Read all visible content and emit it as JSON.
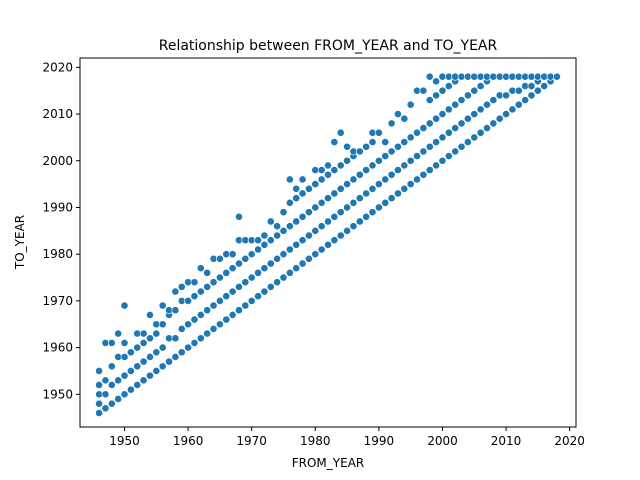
{
  "chart_data": {
    "type": "scatter",
    "title": "Relationship between FROM_YEAR and TO_YEAR",
    "xlabel": "FROM_YEAR",
    "ylabel": "TO_YEAR",
    "xlim": [
      1943,
      2021
    ],
    "ylim": [
      1943,
      2022
    ],
    "xticks": [
      1950,
      1960,
      1970,
      1980,
      1990,
      2000,
      2010,
      2020
    ],
    "yticks": [
      1950,
      1960,
      1970,
      1980,
      1990,
      2000,
      2010,
      2020
    ],
    "grid": false,
    "legend": "none",
    "marker_color": "#1f77b4",
    "description_of_distribution": "Points fill the region between TO_YEAR = FROM_YEAR and roughly TO_YEAR = FROM_YEAR + 20, capped at 2018",
    "series": [
      {
        "points": [
          [
            1946,
            1946
          ],
          [
            1946,
            1948
          ],
          [
            1946,
            1950
          ],
          [
            1946,
            1952
          ],
          [
            1946,
            1955
          ],
          [
            1947,
            1947
          ],
          [
            1947,
            1950
          ],
          [
            1947,
            1953
          ],
          [
            1947,
            1961
          ],
          [
            1948,
            1948
          ],
          [
            1948,
            1952
          ],
          [
            1948,
            1956
          ],
          [
            1948,
            1961
          ],
          [
            1949,
            1949
          ],
          [
            1949,
            1953
          ],
          [
            1949,
            1958
          ],
          [
            1949,
            1963
          ],
          [
            1950,
            1950
          ],
          [
            1950,
            1954
          ],
          [
            1950,
            1958
          ],
          [
            1950,
            1961
          ],
          [
            1950,
            1969
          ],
          [
            1951,
            1951
          ],
          [
            1951,
            1955
          ],
          [
            1951,
            1959
          ],
          [
            1952,
            1952
          ],
          [
            1952,
            1956
          ],
          [
            1952,
            1960
          ],
          [
            1952,
            1963
          ],
          [
            1953,
            1953
          ],
          [
            1953,
            1957
          ],
          [
            1953,
            1961
          ],
          [
            1953,
            1963
          ],
          [
            1954,
            1954
          ],
          [
            1954,
            1958
          ],
          [
            1954,
            1962
          ],
          [
            1954,
            1967
          ],
          [
            1955,
            1955
          ],
          [
            1955,
            1959
          ],
          [
            1955,
            1963
          ],
          [
            1955,
            1965
          ],
          [
            1956,
            1956
          ],
          [
            1956,
            1960
          ],
          [
            1956,
            1965
          ],
          [
            1956,
            1969
          ],
          [
            1957,
            1957
          ],
          [
            1957,
            1962
          ],
          [
            1957,
            1967
          ],
          [
            1957,
            1968
          ],
          [
            1958,
            1958
          ],
          [
            1958,
            1962
          ],
          [
            1958,
            1968
          ],
          [
            1958,
            1972
          ],
          [
            1959,
            1959
          ],
          [
            1959,
            1964
          ],
          [
            1959,
            1970
          ],
          [
            1959,
            1973
          ],
          [
            1960,
            1960
          ],
          [
            1960,
            1965
          ],
          [
            1960,
            1970
          ],
          [
            1960,
            1974
          ],
          [
            1961,
            1961
          ],
          [
            1961,
            1966
          ],
          [
            1961,
            1971
          ],
          [
            1961,
            1974
          ],
          [
            1962,
            1962
          ],
          [
            1962,
            1967
          ],
          [
            1962,
            1972
          ],
          [
            1962,
            1977
          ],
          [
            1963,
            1963
          ],
          [
            1963,
            1968
          ],
          [
            1963,
            1973
          ],
          [
            1963,
            1976
          ],
          [
            1964,
            1964
          ],
          [
            1964,
            1969
          ],
          [
            1964,
            1974
          ],
          [
            1964,
            1979
          ],
          [
            1965,
            1965
          ],
          [
            1965,
            1970
          ],
          [
            1965,
            1975
          ],
          [
            1965,
            1979
          ],
          [
            1966,
            1966
          ],
          [
            1966,
            1971
          ],
          [
            1966,
            1976
          ],
          [
            1966,
            1980
          ],
          [
            1967,
            1967
          ],
          [
            1967,
            1972
          ],
          [
            1967,
            1977
          ],
          [
            1967,
            1980
          ],
          [
            1968,
            1968
          ],
          [
            1968,
            1973
          ],
          [
            1968,
            1978
          ],
          [
            1968,
            1983
          ],
          [
            1968,
            1988
          ],
          [
            1969,
            1969
          ],
          [
            1969,
            1974
          ],
          [
            1969,
            1979
          ],
          [
            1969,
            1983
          ],
          [
            1970,
            1970
          ],
          [
            1970,
            1975
          ],
          [
            1970,
            1980
          ],
          [
            1970,
            1983
          ],
          [
            1971,
            1971
          ],
          [
            1971,
            1976
          ],
          [
            1971,
            1981
          ],
          [
            1971,
            1983
          ],
          [
            1972,
            1972
          ],
          [
            1972,
            1977
          ],
          [
            1972,
            1982
          ],
          [
            1972,
            1984
          ],
          [
            1973,
            1973
          ],
          [
            1973,
            1978
          ],
          [
            1973,
            1983
          ],
          [
            1973,
            1987
          ],
          [
            1974,
            1974
          ],
          [
            1974,
            1979
          ],
          [
            1974,
            1984
          ],
          [
            1974,
            1986
          ],
          [
            1975,
            1975
          ],
          [
            1975,
            1980
          ],
          [
            1975,
            1985
          ],
          [
            1975,
            1989
          ],
          [
            1976,
            1976
          ],
          [
            1976,
            1981
          ],
          [
            1976,
            1986
          ],
          [
            1976,
            1991
          ],
          [
            1976,
            1996
          ],
          [
            1977,
            1977
          ],
          [
            1977,
            1982
          ],
          [
            1977,
            1987
          ],
          [
            1977,
            1992
          ],
          [
            1977,
            1994
          ],
          [
            1978,
            1978
          ],
          [
            1978,
            1983
          ],
          [
            1978,
            1988
          ],
          [
            1978,
            1993
          ],
          [
            1978,
            1996
          ],
          [
            1979,
            1979
          ],
          [
            1979,
            1984
          ],
          [
            1979,
            1989
          ],
          [
            1979,
            1994
          ],
          [
            1980,
            1980
          ],
          [
            1980,
            1985
          ],
          [
            1980,
            1990
          ],
          [
            1980,
            1995
          ],
          [
            1980,
            1998
          ],
          [
            1981,
            1981
          ],
          [
            1981,
            1986
          ],
          [
            1981,
            1991
          ],
          [
            1981,
            1996
          ],
          [
            1981,
            1998
          ],
          [
            1982,
            1982
          ],
          [
            1982,
            1987
          ],
          [
            1982,
            1992
          ],
          [
            1982,
            1997
          ],
          [
            1982,
            1999
          ],
          [
            1983,
            1983
          ],
          [
            1983,
            1988
          ],
          [
            1983,
            1993
          ],
          [
            1983,
            1998
          ],
          [
            1983,
            2004
          ],
          [
            1984,
            1984
          ],
          [
            1984,
            1989
          ],
          [
            1984,
            1994
          ],
          [
            1984,
            1999
          ],
          [
            1984,
            2006
          ],
          [
            1985,
            1985
          ],
          [
            1985,
            1990
          ],
          [
            1985,
            1995
          ],
          [
            1985,
            2000
          ],
          [
            1985,
            2003
          ],
          [
            1986,
            1986
          ],
          [
            1986,
            1991
          ],
          [
            1986,
            1996
          ],
          [
            1986,
            2001
          ],
          [
            1986,
            2002
          ],
          [
            1987,
            1987
          ],
          [
            1987,
            1992
          ],
          [
            1987,
            1997
          ],
          [
            1987,
            2002
          ],
          [
            1988,
            1988
          ],
          [
            1988,
            1993
          ],
          [
            1988,
            1998
          ],
          [
            1988,
            2003
          ],
          [
            1989,
            1989
          ],
          [
            1989,
            1994
          ],
          [
            1989,
            1999
          ],
          [
            1989,
            2004
          ],
          [
            1989,
            2006
          ],
          [
            1990,
            1990
          ],
          [
            1990,
            1995
          ],
          [
            1990,
            2000
          ],
          [
            1990,
            2006
          ],
          [
            1991,
            1991
          ],
          [
            1991,
            1996
          ],
          [
            1991,
            2001
          ],
          [
            1991,
            2004
          ],
          [
            1992,
            1992
          ],
          [
            1992,
            1997
          ],
          [
            1992,
            2002
          ],
          [
            1992,
            2008
          ],
          [
            1993,
            1993
          ],
          [
            1993,
            1998
          ],
          [
            1993,
            2003
          ],
          [
            1993,
            2010
          ],
          [
            1994,
            1994
          ],
          [
            1994,
            1999
          ],
          [
            1994,
            2004
          ],
          [
            1994,
            2009
          ],
          [
            1995,
            1995
          ],
          [
            1995,
            2000
          ],
          [
            1995,
            2005
          ],
          [
            1995,
            2012
          ],
          [
            1996,
            1996
          ],
          [
            1996,
            2001
          ],
          [
            1996,
            2006
          ],
          [
            1996,
            2015
          ],
          [
            1997,
            1997
          ],
          [
            1997,
            2002
          ],
          [
            1997,
            2007
          ],
          [
            1997,
            2015
          ],
          [
            1998,
            1998
          ],
          [
            1998,
            2003
          ],
          [
            1998,
            2008
          ],
          [
            1998,
            2013
          ],
          [
            1998,
            2018
          ],
          [
            1999,
            1999
          ],
          [
            1999,
            2004
          ],
          [
            1999,
            2009
          ],
          [
            1999,
            2014
          ],
          [
            1999,
            2017
          ],
          [
            2000,
            2000
          ],
          [
            2000,
            2005
          ],
          [
            2000,
            2010
          ],
          [
            2000,
            2015
          ],
          [
            2000,
            2018
          ],
          [
            2001,
            2001
          ],
          [
            2001,
            2006
          ],
          [
            2001,
            2011
          ],
          [
            2001,
            2016
          ],
          [
            2001,
            2018
          ],
          [
            2002,
            2002
          ],
          [
            2002,
            2007
          ],
          [
            2002,
            2012
          ],
          [
            2002,
            2017
          ],
          [
            2002,
            2018
          ],
          [
            2003,
            2003
          ],
          [
            2003,
            2008
          ],
          [
            2003,
            2013
          ],
          [
            2003,
            2018
          ],
          [
            2004,
            2004
          ],
          [
            2004,
            2009
          ],
          [
            2004,
            2014
          ],
          [
            2004,
            2018
          ],
          [
            2005,
            2005
          ],
          [
            2005,
            2010
          ],
          [
            2005,
            2015
          ],
          [
            2005,
            2018
          ],
          [
            2006,
            2006
          ],
          [
            2006,
            2011
          ],
          [
            2006,
            2016
          ],
          [
            2006,
            2018
          ],
          [
            2007,
            2007
          ],
          [
            2007,
            2012
          ],
          [
            2007,
            2017
          ],
          [
            2007,
            2018
          ],
          [
            2008,
            2008
          ],
          [
            2008,
            2013
          ],
          [
            2008,
            2018
          ],
          [
            2009,
            2009
          ],
          [
            2009,
            2014
          ],
          [
            2009,
            2018
          ],
          [
            2010,
            2010
          ],
          [
            2010,
            2014
          ],
          [
            2010,
            2018
          ],
          [
            2011,
            2011
          ],
          [
            2011,
            2015
          ],
          [
            2011,
            2018
          ],
          [
            2012,
            2012
          ],
          [
            2012,
            2015
          ],
          [
            2012,
            2018
          ],
          [
            2013,
            2013
          ],
          [
            2013,
            2016
          ],
          [
            2013,
            2018
          ],
          [
            2014,
            2014
          ],
          [
            2014,
            2016
          ],
          [
            2014,
            2018
          ],
          [
            2015,
            2015
          ],
          [
            2015,
            2017
          ],
          [
            2015,
            2018
          ],
          [
            2016,
            2016
          ],
          [
            2016,
            2018
          ],
          [
            2017,
            2017
          ],
          [
            2017,
            2018
          ],
          [
            2018,
            2018
          ]
        ]
      }
    ]
  }
}
